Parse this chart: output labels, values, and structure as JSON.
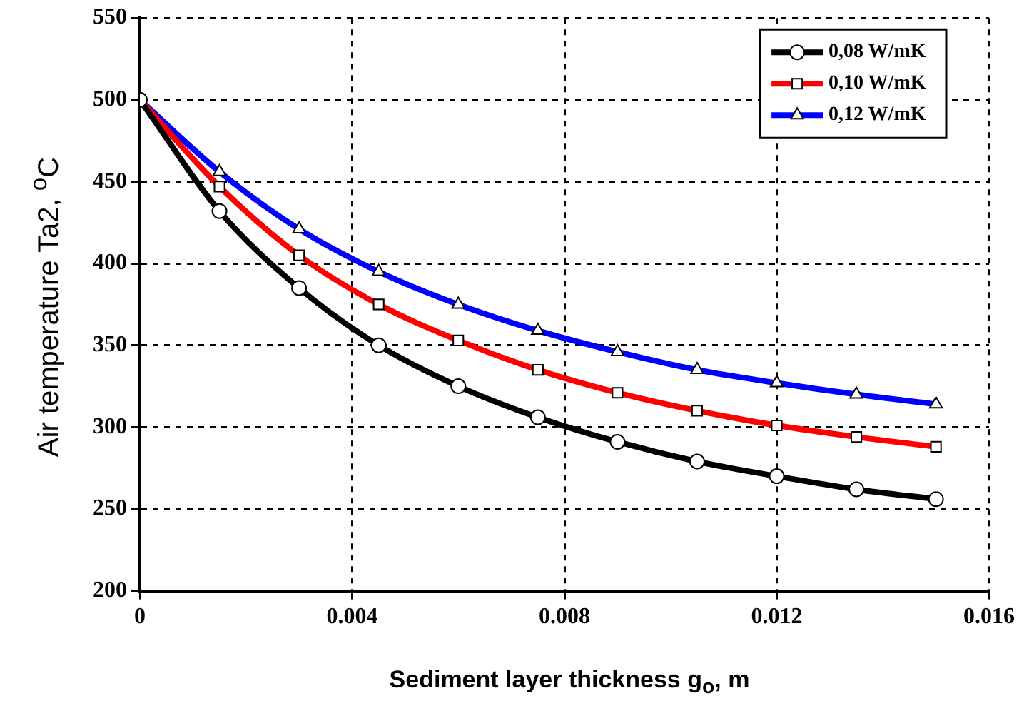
{
  "chart_data": {
    "type": "line",
    "xlabel": "Sediment layer thickness g$_{o}$, m",
    "ylabel": "Air temperature Ta2, $^{o}$C",
    "x": [
      0,
      0.0015,
      0.003,
      0.0045,
      0.006,
      0.0075,
      0.009,
      0.0105,
      0.012,
      0.0135,
      0.015
    ],
    "series": [
      {
        "name": "0,08 W/mK",
        "color": "#000000",
        "marker": "circle",
        "values": [
          500,
          432,
          385,
          350,
          325,
          306,
          291,
          279,
          270,
          262,
          256
        ]
      },
      {
        "name": "0,10 W/mK",
        "color": "#ff0000",
        "marker": "square",
        "values": [
          500,
          447,
          405,
          375,
          353,
          335,
          321,
          310,
          301,
          294,
          288
        ]
      },
      {
        "name": "0,12 W/mK",
        "color": "#0000ff",
        "marker": "triangle",
        "values": [
          500,
          456,
          421,
          395,
          375,
          359,
          346,
          335,
          327,
          320,
          314
        ]
      }
    ],
    "xlim": [
      0,
      0.016
    ],
    "xticks": [
      0,
      0.004,
      0.008,
      0.012,
      0.016
    ],
    "ylim": [
      200,
      550
    ],
    "yticks": [
      200,
      250,
      300,
      350,
      400,
      450,
      500,
      550
    ],
    "grid": true,
    "legend": "top right",
    "line_style": "solid"
  }
}
